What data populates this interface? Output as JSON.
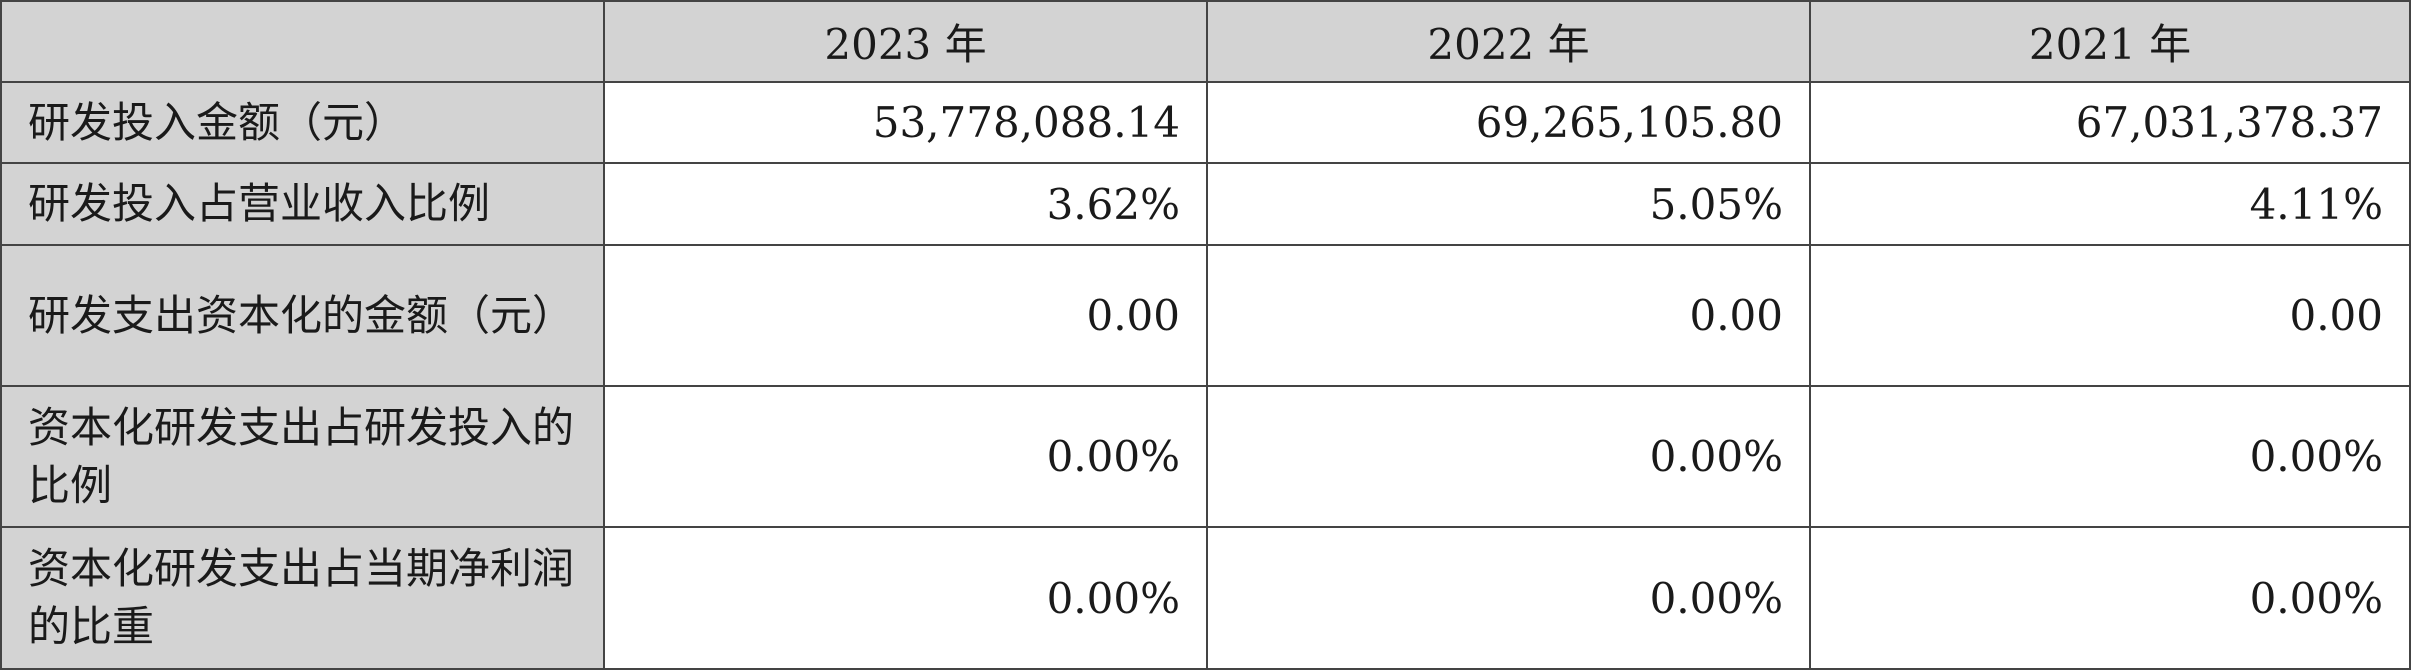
{
  "table": {
    "columns": [
      "2023 年",
      "2022 年",
      "2021 年"
    ],
    "rows": [
      [
        "研发投入金额（元）",
        "53,778,088.14",
        "69,265,105.80",
        "67,031,378.37"
      ],
      [
        "研发投入占营业收入比例",
        "3.62%",
        "5.05%",
        "4.11%"
      ],
      [
        "研发支出资本化的金额（元）",
        "0.00",
        "0.00",
        "0.00"
      ],
      [
        "资本化研发支出占研发投入的比例",
        "0.00%",
        "0.00%",
        "0.00%"
      ],
      [
        "资本化研发支出占当期净利润的比重",
        "0.00%",
        "0.00%",
        "0.00%"
      ]
    ]
  }
}
